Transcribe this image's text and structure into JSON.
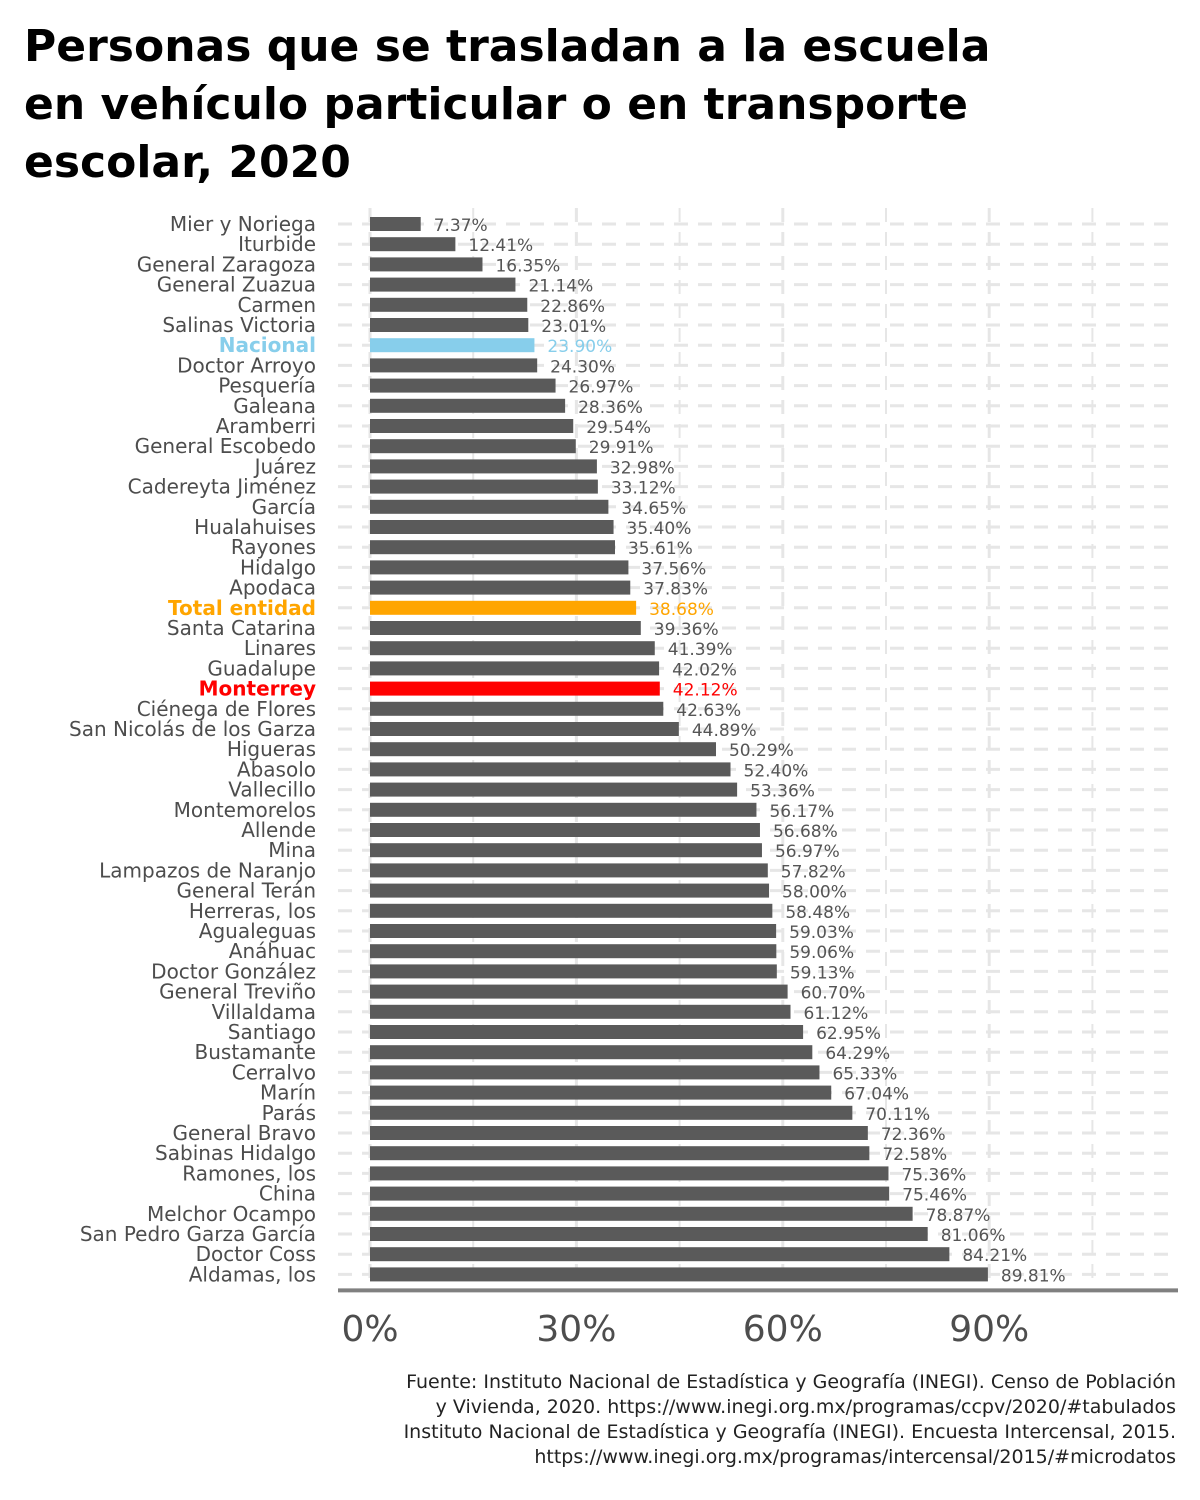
{
  "title": "Personas que se trasladan a la escuela en vehículo particular o en transporte escolar, 2020",
  "source_lines": [
    "Fuente: Instituto Nacional de Estadística y Geografía (INEGI). Censo de Población",
    "y Vivienda, 2020. https://www.inegi.org.mx/programas/ccpv/2020/#tabulados",
    "Instituto Nacional de Estadística y Geografía (INEGI). Encuesta Intercensal, 2015.",
    "https://www.inegi.org.mx/programas/intercensal/2015/#microdatos"
  ],
  "colors": {
    "default_bar": "#5a5a5a",
    "nacional": "#87ceeb",
    "total_entidad": "#ffa500",
    "monterrey": "#ff0000",
    "grid": "#e6e6e6",
    "axis": "#808080"
  },
  "chart_data": {
    "type": "bar",
    "orientation": "horizontal",
    "title": "Personas que se trasladan a la escuela en vehículo particular o en transporte escolar, 2020",
    "xlabel": "",
    "ylabel": "",
    "xlim": [
      0,
      115
    ],
    "x_ticks": [
      0,
      30,
      60,
      90
    ],
    "x_tick_labels": [
      "0%",
      "30%",
      "60%",
      "90%"
    ],
    "grid": true,
    "categories": [
      "Mier y Noriega",
      "Iturbide",
      "General Zaragoza",
      "General Zuazua",
      "Carmen",
      "Salinas Victoria",
      "Nacional",
      "Doctor Arroyo",
      "Pesquería",
      "Galeana",
      "Aramberri",
      "General Escobedo",
      "Juárez",
      "Cadereyta Jiménez",
      "García",
      "Hualahuises",
      "Rayones",
      "Hidalgo",
      "Apodaca",
      "Total entidad",
      "Santa Catarina",
      "Linares",
      "Guadalupe",
      "Monterrey",
      "Ciénega de Flores",
      "San Nicolás de los Garza",
      "Higueras",
      "Abasolo",
      "Vallecillo",
      "Montemorelos",
      "Allende",
      "Mina",
      "Lampazos de Naranjo",
      "General Terán",
      "Herreras, los",
      "Agualeguas",
      "Anáhuac",
      "Doctor González",
      "General Treviño",
      "Villaldama",
      "Santiago",
      "Bustamante",
      "Cerralvo",
      "Marín",
      "Parás",
      "General Bravo",
      "Sabinas Hidalgo",
      "Ramones, los",
      "China",
      "Melchor Ocampo",
      "San Pedro Garza García",
      "Doctor Coss",
      "Aldamas, los"
    ],
    "values": [
      7.37,
      12.41,
      16.35,
      21.14,
      22.86,
      23.01,
      23.9,
      24.3,
      26.97,
      28.36,
      29.54,
      29.91,
      32.98,
      33.12,
      34.65,
      35.4,
      35.61,
      37.56,
      37.83,
      38.68,
      39.36,
      41.39,
      42.02,
      42.12,
      42.63,
      44.89,
      50.29,
      52.4,
      53.36,
      56.17,
      56.68,
      56.97,
      57.82,
      58.0,
      58.48,
      59.03,
      59.06,
      59.13,
      60.7,
      61.12,
      62.95,
      64.29,
      65.33,
      67.04,
      70.11,
      72.36,
      72.58,
      75.36,
      75.46,
      78.87,
      81.06,
      84.21,
      89.81
    ],
    "value_labels": [
      "7.37%",
      "12.41%",
      "16.35%",
      "21.14%",
      "22.86%",
      "23.01%",
      "23.90%",
      "24.30%",
      "26.97%",
      "28.36%",
      "29.54%",
      "29.91%",
      "32.98%",
      "33.12%",
      "34.65%",
      "35.40%",
      "35.61%",
      "37.56%",
      "37.83%",
      "38.68%",
      "39.36%",
      "41.39%",
      "42.02%",
      "42.12%",
      "42.63%",
      "44.89%",
      "50.29%",
      "52.40%",
      "53.36%",
      "56.17%",
      "56.68%",
      "56.97%",
      "57.82%",
      "58.00%",
      "58.48%",
      "59.03%",
      "59.06%",
      "59.13%",
      "60.70%",
      "61.12%",
      "62.95%",
      "64.29%",
      "65.33%",
      "67.04%",
      "70.11%",
      "72.36%",
      "72.58%",
      "75.36%",
      "75.46%",
      "78.87%",
      "81.06%",
      "84.21%",
      "89.81%"
    ],
    "highlights": {
      "Nacional": {
        "color": "#87ceeb",
        "bold": true
      },
      "Total entidad": {
        "color": "#ffa500",
        "bold": true
      },
      "Monterrey": {
        "color": "#ff0000",
        "bold": true
      }
    }
  }
}
